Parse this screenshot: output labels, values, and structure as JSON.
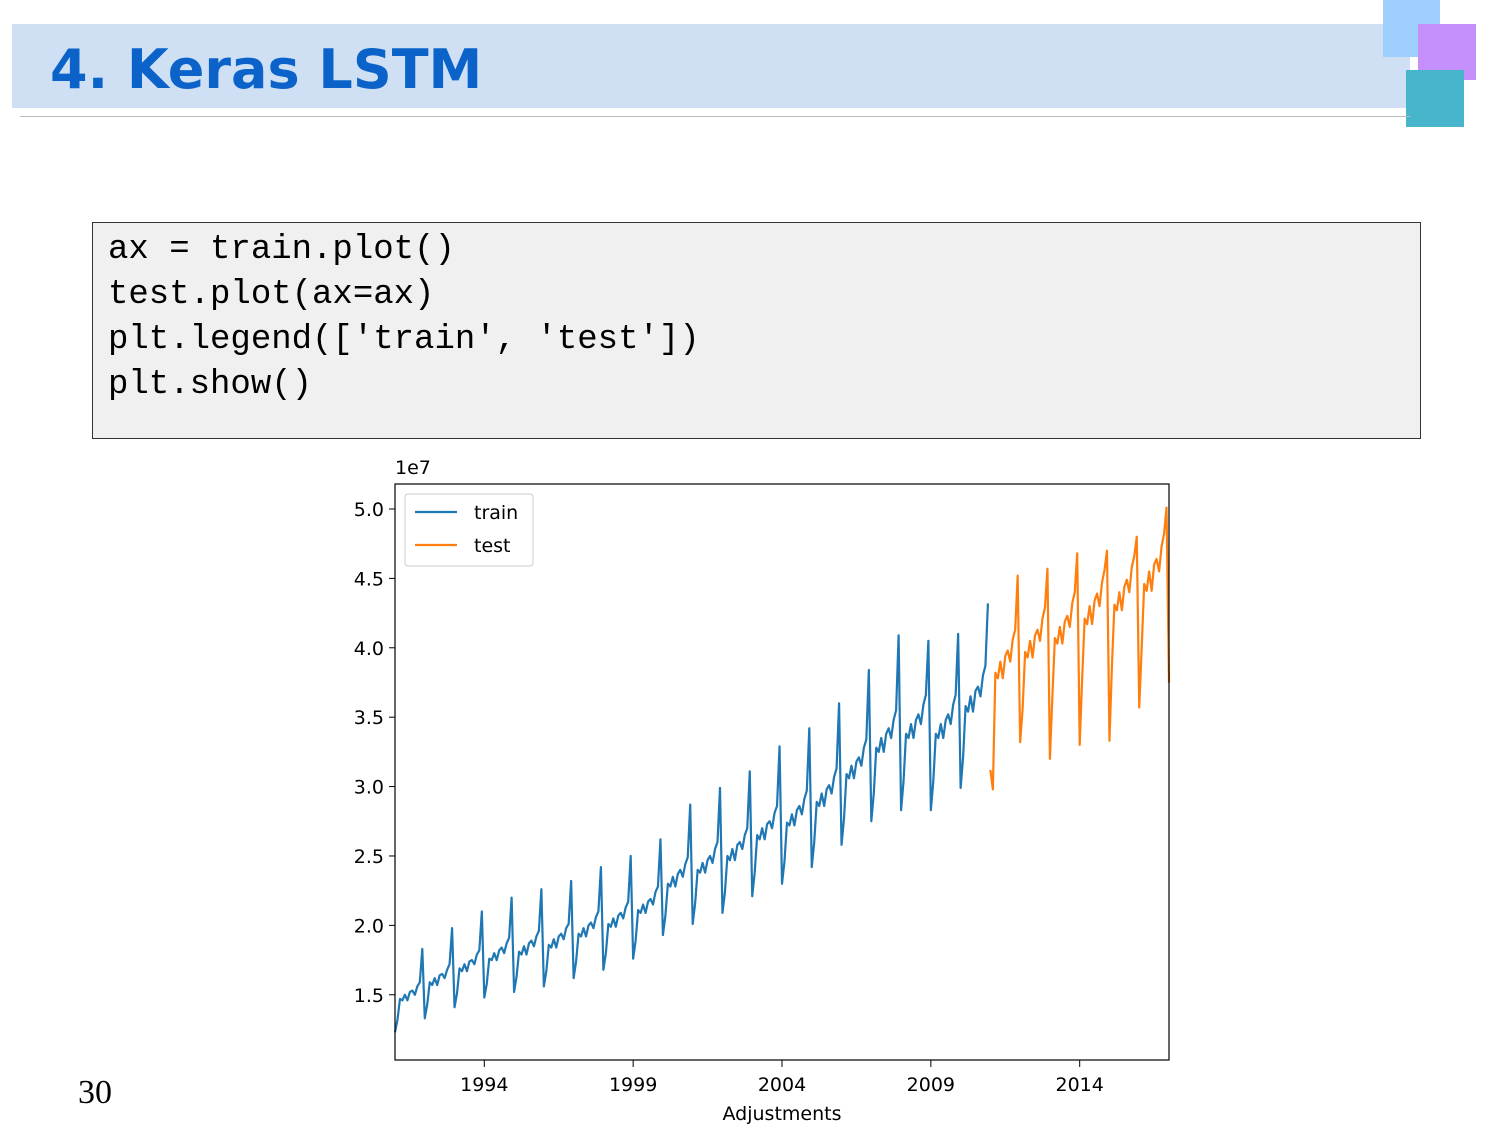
{
  "slide": {
    "title": "4. Keras LSTM",
    "page_number": "30",
    "code": [
      "ax = train.plot()",
      "test.plot(ax=ax)",
      "plt.legend(['train', 'test'])",
      "plt.show()"
    ]
  },
  "chart_data": {
    "type": "line",
    "xlabel": "Adjustments",
    "y_scale_label": "1e7",
    "legend": "upper left",
    "xlim": [
      1991,
      2017
    ],
    "xticks": [
      1994,
      1999,
      2004,
      2009,
      2014
    ],
    "ylim": [
      1.03,
      5.18
    ],
    "yticks": [
      {
        "value": 1.5,
        "label": "1.5"
      },
      {
        "value": 2,
        "label": "2.0"
      },
      {
        "value": 2.5,
        "label": "2.5"
      },
      {
        "value": 3,
        "label": "3.0"
      },
      {
        "value": 3.5,
        "label": "3.5"
      },
      {
        "value": 4,
        "label": "4.0"
      },
      {
        "value": 4.5,
        "label": "4.5"
      },
      {
        "value": 5,
        "label": "5.0"
      }
    ],
    "series": [
      {
        "name": "train",
        "color": "#1f77b4",
        "x": [
          1991,
          1991.083,
          1991.167,
          1991.25,
          1991.333,
          1991.417,
          1991.5,
          1991.583,
          1991.667,
          1991.75,
          1991.833,
          1991.917,
          1992,
          1992.083,
          1992.167,
          1992.25,
          1992.333,
          1992.417,
          1992.5,
          1992.583,
          1992.667,
          1992.75,
          1992.833,
          1992.917,
          1993,
          1993.083,
          1993.167,
          1993.25,
          1993.333,
          1993.417,
          1993.5,
          1993.583,
          1993.667,
          1993.75,
          1993.833,
          1993.917,
          1994,
          1994.083,
          1994.167,
          1994.25,
          1994.333,
          1994.417,
          1994.5,
          1994.583,
          1994.667,
          1994.75,
          1994.833,
          1994.917,
          1995,
          1995.083,
          1995.167,
          1995.25,
          1995.333,
          1995.417,
          1995.5,
          1995.583,
          1995.667,
          1995.75,
          1995.833,
          1995.917,
          1996,
          1996.083,
          1996.167,
          1996.25,
          1996.333,
          1996.417,
          1996.5,
          1996.583,
          1996.667,
          1996.75,
          1996.833,
          1996.917,
          1997,
          1997.083,
          1997.167,
          1997.25,
          1997.333,
          1997.417,
          1997.5,
          1997.583,
          1997.667,
          1997.75,
          1997.833,
          1997.917,
          1998,
          1998.083,
          1998.167,
          1998.25,
          1998.333,
          1998.417,
          1998.5,
          1998.583,
          1998.667,
          1998.75,
          1998.833,
          1998.917,
          1999,
          1999.083,
          1999.167,
          1999.25,
          1999.333,
          1999.417,
          1999.5,
          1999.583,
          1999.667,
          1999.75,
          1999.833,
          1999.917,
          2000,
          2000.083,
          2000.167,
          2000.25,
          2000.333,
          2000.417,
          2000.5,
          2000.583,
          2000.667,
          2000.75,
          2000.833,
          2000.917,
          2001,
          2001.083,
          2001.167,
          2001.25,
          2001.333,
          2001.417,
          2001.5,
          2001.583,
          2001.667,
          2001.75,
          2001.833,
          2001.917,
          2002,
          2002.083,
          2002.167,
          2002.25,
          2002.333,
          2002.417,
          2002.5,
          2002.583,
          2002.667,
          2002.75,
          2002.833,
          2002.917,
          2003,
          2003.083,
          2003.167,
          2003.25,
          2003.333,
          2003.417,
          2003.5,
          2003.583,
          2003.667,
          2003.75,
          2003.833,
          2003.917,
          2004,
          2004.083,
          2004.167,
          2004.25,
          2004.333,
          2004.417,
          2004.5,
          2004.583,
          2004.667,
          2004.75,
          2004.833,
          2004.917,
          2005,
          2005.083,
          2005.167,
          2005.25,
          2005.333,
          2005.417,
          2005.5,
          2005.583,
          2005.667,
          2005.75,
          2005.833,
          2005.917,
          2006,
          2006.083,
          2006.167,
          2006.25,
          2006.333,
          2006.417,
          2006.5,
          2006.583,
          2006.667,
          2006.75,
          2006.833,
          2006.917,
          2007,
          2007.083,
          2007.167,
          2007.25,
          2007.333,
          2007.417,
          2007.5,
          2007.583,
          2007.667,
          2007.75,
          2007.833,
          2007.917,
          2008,
          2008.083,
          2008.167,
          2008.25,
          2008.333,
          2008.417,
          2008.5,
          2008.583,
          2008.667,
          2008.75,
          2008.833,
          2008.917,
          2009,
          2009.083,
          2009.167,
          2009.25,
          2009.333,
          2009.417,
          2009.5,
          2009.583,
          2009.667,
          2009.75,
          2009.833,
          2009.917,
          2010,
          2010.083,
          2010.167,
          2010.25,
          2010.333,
          2010.417,
          2010.5,
          2010.583,
          2010.667,
          2010.75,
          2010.833,
          2010.917
        ],
        "values": [
          1.23,
          1.32,
          1.47,
          1.46,
          1.5,
          1.46,
          1.52,
          1.53,
          1.5,
          1.56,
          1.59,
          1.83,
          1.33,
          1.43,
          1.59,
          1.57,
          1.62,
          1.57,
          1.64,
          1.65,
          1.62,
          1.68,
          1.72,
          1.98,
          1.41,
          1.51,
          1.69,
          1.67,
          1.72,
          1.67,
          1.74,
          1.75,
          1.72,
          1.79,
          1.82,
          2.1,
          1.48,
          1.58,
          1.76,
          1.75,
          1.8,
          1.75,
          1.82,
          1.84,
          1.8,
          1.87,
          1.91,
          2.2,
          1.52,
          1.63,
          1.81,
          1.79,
          1.85,
          1.79,
          1.87,
          1.89,
          1.85,
          1.92,
          1.96,
          2.26,
          1.56,
          1.67,
          1.86,
          1.84,
          1.9,
          1.84,
          1.92,
          1.94,
          1.9,
          1.98,
          2.01,
          2.32,
          1.62,
          1.74,
          1.94,
          1.92,
          1.98,
          1.92,
          2,
          2.02,
          1.98,
          2.06,
          2.1,
          2.42,
          1.68,
          1.8,
          2.01,
          1.99,
          2.05,
          1.99,
          2.07,
          2.09,
          2.05,
          2.13,
          2.17,
          2.5,
          1.76,
          1.89,
          2.11,
          2.09,
          2.15,
          2.09,
          2.17,
          2.19,
          2.15,
          2.24,
          2.28,
          2.62,
          1.93,
          2.07,
          2.3,
          2.28,
          2.35,
          2.28,
          2.37,
          2.4,
          2.35,
          2.44,
          2.49,
          2.87,
          2.01,
          2.16,
          2.4,
          2.38,
          2.45,
          2.38,
          2.47,
          2.5,
          2.45,
          2.55,
          2.6,
          2.99,
          2.09,
          2.24,
          2.5,
          2.47,
          2.55,
          2.47,
          2.58,
          2.6,
          2.55,
          2.65,
          2.7,
          3.11,
          2.21,
          2.38,
          2.65,
          2.62,
          2.7,
          2.62,
          2.73,
          2.75,
          2.7,
          2.81,
          2.86,
          3.29,
          2.3,
          2.46,
          2.74,
          2.72,
          2.8,
          2.72,
          2.83,
          2.86,
          2.8,
          2.91,
          2.97,
          3.42,
          2.42,
          2.6,
          2.89,
          2.86,
          2.95,
          2.86,
          2.98,
          3.01,
          2.95,
          3.07,
          3.13,
          3.6,
          2.58,
          2.77,
          3.09,
          3.06,
          3.15,
          3.06,
          3.18,
          3.21,
          3.15,
          3.28,
          3.34,
          3.84,
          2.75,
          2.95,
          3.28,
          3.25,
          3.35,
          3.25,
          3.38,
          3.42,
          3.35,
          3.48,
          3.55,
          4.09,
          2.83,
          3.04,
          3.38,
          3.35,
          3.45,
          3.35,
          3.48,
          3.52,
          3.45,
          3.59,
          3.66,
          4.05,
          2.83,
          3.04,
          3.38,
          3.35,
          3.45,
          3.35,
          3.48,
          3.52,
          3.45,
          3.59,
          3.66,
          4.1,
          2.99,
          3.21,
          3.58,
          3.54,
          3.65,
          3.54,
          3.69,
          3.72,
          3.65,
          3.8,
          3.87,
          4.32
        ]
      },
      {
        "name": "test",
        "color": "#ff7f0e",
        "x": [
          2011,
          2011.083,
          2011.167,
          2011.25,
          2011.333,
          2011.417,
          2011.5,
          2011.583,
          2011.667,
          2011.75,
          2011.833,
          2011.917,
          2012,
          2012.083,
          2012.167,
          2012.25,
          2012.333,
          2012.417,
          2012.5,
          2012.583,
          2012.667,
          2012.75,
          2012.833,
          2012.917,
          2013,
          2013.083,
          2013.167,
          2013.25,
          2013.333,
          2013.417,
          2013.5,
          2013.583,
          2013.667,
          2013.75,
          2013.833,
          2013.917,
          2014,
          2014.083,
          2014.167,
          2014.25,
          2014.333,
          2014.417,
          2014.5,
          2014.583,
          2014.667,
          2014.75,
          2014.833,
          2014.917,
          2015,
          2015.083,
          2015.167,
          2015.25,
          2015.333,
          2015.417,
          2015.5,
          2015.583,
          2015.667,
          2015.75,
          2015.833,
          2015.917,
          2016,
          2016.083,
          2016.167,
          2016.25,
          2016.333,
          2016.417,
          2016.5,
          2016.583,
          2016.667,
          2016.75,
          2016.833,
          2016.917,
          2017
        ],
        "values": [
          3.12,
          2.98,
          3.82,
          3.78,
          3.9,
          3.78,
          3.94,
          3.98,
          3.9,
          4.06,
          4.13,
          4.52,
          3.32,
          3.56,
          3.97,
          3.93,
          4.05,
          3.93,
          4.09,
          4.13,
          4.05,
          4.21,
          4.29,
          4.57,
          3.2,
          3.65,
          4.07,
          4.03,
          4.15,
          4.03,
          4.19,
          4.23,
          4.15,
          4.32,
          4.4,
          4.68,
          3.3,
          3.78,
          4.21,
          4.17,
          4.3,
          4.17,
          4.34,
          4.39,
          4.3,
          4.47,
          4.56,
          4.7,
          3.33,
          3.87,
          4.31,
          4.27,
          4.4,
          4.27,
          4.44,
          4.49,
          4.4,
          4.58,
          4.66,
          4.8,
          3.57,
          4,
          4.46,
          4.41,
          4.55,
          4.41,
          4.6,
          4.64,
          4.55,
          4.73,
          4.82,
          5.01,
          3.75
        ]
      }
    ]
  }
}
